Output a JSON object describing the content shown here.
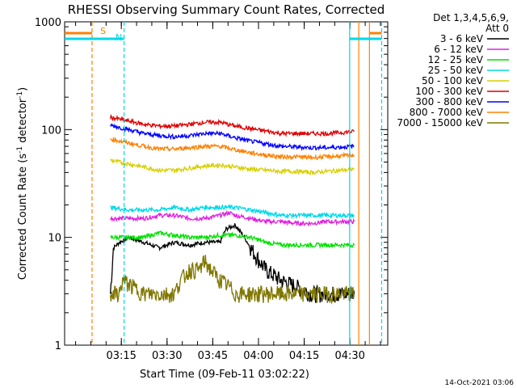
{
  "chart_data": {
    "type": "line",
    "title": "RHESSI Observing Summary Count Rates, Corrected",
    "xlabel": "Start Time (09-Feb-11 03:02:22)",
    "ylabel_main": "Corrected Count Rate (s",
    "ylabel_sup1": "-1",
    "ylabel_mid": " detector",
    "ylabel_sup2": "-1",
    "ylabel_end": ")",
    "yscale": "log",
    "ylim": [
      1,
      1000
    ],
    "xlim_minutes": [
      -6,
      100
    ],
    "x_ticks": [
      {
        "label": "03:15",
        "min": 12.6
      },
      {
        "label": "03:30",
        "min": 27.6
      },
      {
        "label": "03:45",
        "min": 42.6
      },
      {
        "label": "04:00",
        "min": 57.6
      },
      {
        "label": "04:15",
        "min": 72.6
      },
      {
        "label": "04:30",
        "min": 87.6
      }
    ],
    "y_ticks": [
      {
        "label": "1",
        "v": 1
      },
      {
        "label": "10",
        "v": 10
      },
      {
        "label": "100",
        "v": 100
      },
      {
        "label": "1000",
        "v": 1000
      }
    ],
    "legend_header_1": "Det 1,3,4,5,6,9,",
    "legend_header_2": "Att 0",
    "legend_position": "right, outside plot",
    "flag_labels": {
      "s": "S",
      "n": "N"
    },
    "series": [
      {
        "name": "3 - 6 keV",
        "color": "#000000",
        "x": [
          9,
          10,
          12,
          15,
          20,
          25,
          30,
          35,
          40,
          45,
          47,
          50,
          53,
          55,
          58,
          60,
          65,
          70,
          75,
          80,
          85,
          89
        ],
        "y": [
          3,
          8,
          9,
          10,
          9,
          8,
          9,
          8.5,
          9,
          9,
          12,
          13,
          10,
          8,
          6,
          5,
          4,
          3.5,
          3,
          3,
          3,
          3
        ]
      },
      {
        "name": "6 - 12 keV",
        "color": "#e020e0",
        "x": [
          9,
          15,
          20,
          25,
          30,
          35,
          40,
          45,
          48,
          50,
          55,
          60,
          65,
          70,
          75,
          80,
          85,
          89
        ],
        "y": [
          15,
          15,
          15,
          16,
          16,
          15,
          15,
          16,
          17,
          16,
          15,
          14,
          14,
          13.5,
          13.5,
          14,
          14,
          14
        ]
      },
      {
        "name": "12 - 25 keV",
        "color": "#00e000",
        "x": [
          9,
          15,
          20,
          25,
          30,
          35,
          40,
          45,
          50,
          55,
          60,
          65,
          70,
          75,
          80,
          85,
          89
        ],
        "y": [
          10,
          10,
          10,
          11,
          10.5,
          10,
          10,
          10.5,
          10.5,
          10,
          9,
          8.5,
          8.5,
          8.5,
          8.5,
          8.5,
          8.5
        ]
      },
      {
        "name": "25 - 50 keV",
        "color": "#00d8e8",
        "x": [
          9,
          15,
          20,
          25,
          30,
          35,
          40,
          45,
          50,
          55,
          60,
          65,
          70,
          75,
          80,
          85,
          89
        ],
        "y": [
          19,
          18,
          18,
          18,
          19,
          18,
          19,
          19,
          19,
          18,
          17,
          16,
          16,
          16,
          16,
          16,
          16
        ]
      },
      {
        "name": "50 - 100 keV",
        "color": "#d8d000",
        "x": [
          9,
          15,
          20,
          25,
          30,
          35,
          40,
          45,
          50,
          55,
          60,
          65,
          70,
          75,
          80,
          85,
          89
        ],
        "y": [
          52,
          48,
          45,
          42,
          42,
          44,
          46,
          47,
          45,
          43,
          42,
          41,
          41,
          40,
          41,
          42,
          43
        ]
      },
      {
        "name": "100 - 300 keV",
        "color": "#e00000",
        "x": [
          9,
          15,
          20,
          25,
          30,
          35,
          40,
          45,
          50,
          55,
          60,
          65,
          70,
          75,
          80,
          85,
          89
        ],
        "y": [
          130,
          120,
          112,
          108,
          108,
          112,
          117,
          117,
          108,
          102,
          97,
          92,
          92,
          92,
          92,
          94,
          96
        ]
      },
      {
        "name": "300 - 800 keV",
        "color": "#0000ff",
        "x": [
          9,
          15,
          20,
          25,
          30,
          35,
          40,
          45,
          50,
          55,
          60,
          65,
          70,
          75,
          80,
          85,
          89
        ],
        "y": [
          110,
          100,
          92,
          88,
          86,
          88,
          92,
          92,
          84,
          78,
          74,
          70,
          69,
          68,
          68,
          69,
          70
        ]
      },
      {
        "name": "800 - 7000 keV",
        "color": "#ff8000",
        "x": [
          9,
          15,
          20,
          25,
          30,
          35,
          40,
          45,
          50,
          55,
          60,
          65,
          70,
          75,
          80,
          85,
          89
        ],
        "y": [
          82,
          75,
          70,
          66,
          66,
          68,
          70,
          70,
          65,
          61,
          58,
          56,
          56,
          55,
          56,
          57,
          58
        ]
      },
      {
        "name": "7000 - 15000 keV",
        "color": "#807800",
        "x": [
          9,
          12,
          13,
          20,
          25,
          30,
          32,
          35,
          38,
          40,
          42,
          45,
          48,
          50,
          55,
          60,
          65,
          70,
          75,
          80,
          85,
          89
        ],
        "y": [
          3,
          3,
          4,
          3,
          3,
          3,
          4,
          5,
          5,
          6,
          5,
          4,
          3.5,
          3,
          3,
          3,
          3,
          3,
          3,
          3,
          3,
          3
        ]
      }
    ],
    "markers": [
      {
        "kind": "attenuator-saa",
        "color": "#ff8000",
        "style": "dashed",
        "x": 3
      },
      {
        "kind": "night",
        "color": "#00d8e8",
        "style": "dashed",
        "x": 13.5
      },
      {
        "kind": "night-start",
        "color": "#00d8e8",
        "style": "solid",
        "x": 87.5
      },
      {
        "kind": "data-end",
        "color": "#ff8000",
        "style": "solid",
        "x": 90.5
      },
      {
        "kind": "saa-start",
        "color": "#ff8000",
        "style": "solid",
        "x": 94
      },
      {
        "kind": "night-end",
        "color": "#00d8e8",
        "style": "dashed",
        "x": 98
      }
    ],
    "footer": "14-Oct-2021 03:06"
  }
}
